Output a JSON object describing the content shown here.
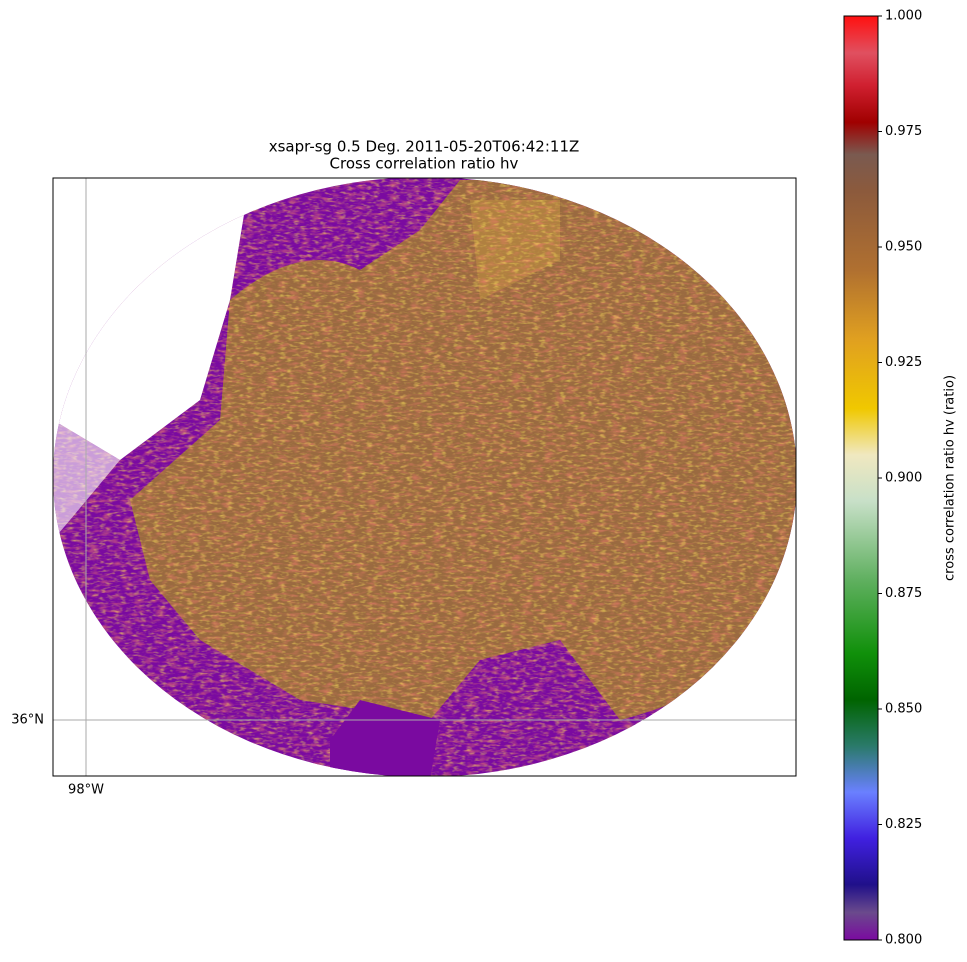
{
  "title": [
    "xsapr-sg 0.5 Deg. 2011-05-20T06:42:11Z",
    "Cross correlation ratio hv"
  ],
  "map": {
    "lat_labels": [
      "36°N"
    ],
    "lon_labels": [
      "98°W"
    ]
  },
  "colorbar": {
    "label": "cross correlation ratio hv (ratio)",
    "lim": [
      0.8,
      1.0
    ],
    "ticks": [
      {
        "value": 0.8,
        "label": "0.800"
      },
      {
        "value": 0.825,
        "label": "0.825"
      },
      {
        "value": 0.85,
        "label": "0.850"
      },
      {
        "value": 0.875,
        "label": "0.875"
      },
      {
        "value": 0.9,
        "label": "0.900"
      },
      {
        "value": 0.925,
        "label": "0.925"
      },
      {
        "value": 0.95,
        "label": "0.950"
      },
      {
        "value": 0.975,
        "label": "0.975"
      },
      {
        "value": 1.0,
        "label": "1.000"
      }
    ],
    "colors": [
      {
        "value": 0.8,
        "color": "#7a0aa0"
      },
      {
        "value": 0.806,
        "color": "#6a4a8c"
      },
      {
        "value": 0.812,
        "color": "#20108a"
      },
      {
        "value": 0.822,
        "color": "#4020e0"
      },
      {
        "value": 0.832,
        "color": "#6a80ff"
      },
      {
        "value": 0.842,
        "color": "#2a7a6a"
      },
      {
        "value": 0.852,
        "color": "#006400"
      },
      {
        "value": 0.862,
        "color": "#10900a"
      },
      {
        "value": 0.878,
        "color": "#60b060"
      },
      {
        "value": 0.895,
        "color": "#c8e0c8"
      },
      {
        "value": 0.905,
        "color": "#f0e8c0"
      },
      {
        "value": 0.915,
        "color": "#f0c800"
      },
      {
        "value": 0.93,
        "color": "#e0a020"
      },
      {
        "value": 0.945,
        "color": "#b07030"
      },
      {
        "value": 0.962,
        "color": "#8c5a3c"
      },
      {
        "value": 0.97,
        "color": "#7a5a50"
      },
      {
        "value": 0.977,
        "color": "#a00000"
      },
      {
        "value": 0.985,
        "color": "#d02030"
      },
      {
        "value": 0.992,
        "color": "#e05060"
      },
      {
        "value": 1.0,
        "color": "#ff1010"
      }
    ]
  }
}
